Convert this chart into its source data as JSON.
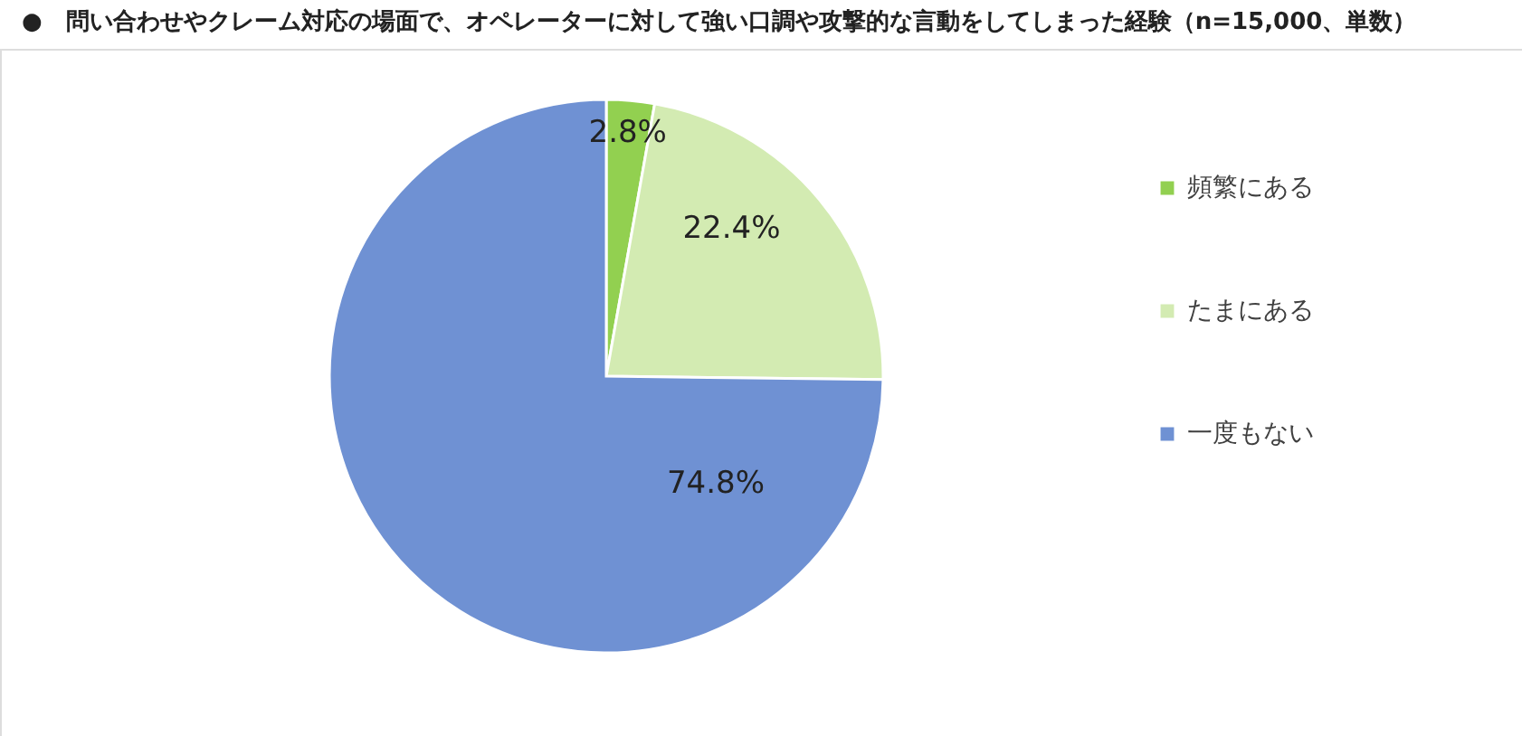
{
  "chart_data": {
    "type": "pie",
    "title": "●　問い合わせやクレーム対応の場面で、オペレーターに対して強い口調や攻撃的な言動をしてしまった経験（n=15,000、単数）",
    "categories": [
      "頻繁にある",
      "たまにある",
      "一度もない"
    ],
    "values": [
      2.8,
      22.4,
      74.8
    ],
    "colors": [
      "#92d050",
      "#d3ebb2",
      "#6f91d3"
    ],
    "value_labels": [
      "2.8%",
      "22.4%",
      "74.8%"
    ],
    "legend": "right"
  }
}
